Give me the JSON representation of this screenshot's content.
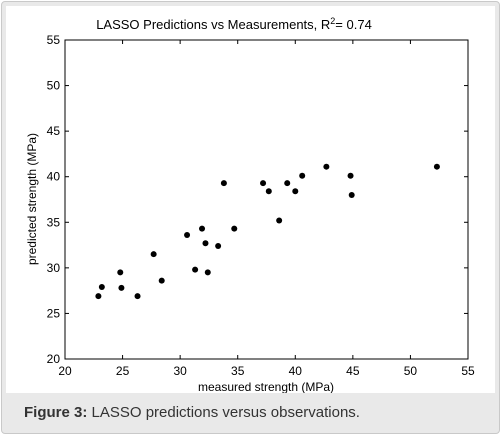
{
  "caption": {
    "label": "Figure 3:",
    "text": " LASSO predictions versus observations."
  },
  "chart_data": {
    "type": "scatter",
    "title_main": "LASSO Predictions vs Measurements, R",
    "title_sup": "2",
    "title_end": "= 0.74",
    "xlabel": "measured strength (MPa)",
    "ylabel": "predicted strength (MPa)",
    "xlim": [
      20,
      55
    ],
    "ylim": [
      20,
      55
    ],
    "xticks": [
      20,
      25,
      30,
      35,
      40,
      45,
      50,
      55
    ],
    "yticks": [
      20,
      25,
      30,
      35,
      40,
      45,
      50,
      55
    ],
    "grid": false,
    "legend": "none",
    "marker_color": "#000000",
    "points": [
      {
        "x": 22.9,
        "y": 26.9
      },
      {
        "x": 23.2,
        "y": 27.9
      },
      {
        "x": 24.8,
        "y": 29.5
      },
      {
        "x": 24.9,
        "y": 27.8
      },
      {
        "x": 26.3,
        "y": 26.9
      },
      {
        "x": 27.7,
        "y": 31.5
      },
      {
        "x": 28.4,
        "y": 28.6
      },
      {
        "x": 30.6,
        "y": 33.6
      },
      {
        "x": 31.3,
        "y": 29.8
      },
      {
        "x": 31.9,
        "y": 34.3
      },
      {
        "x": 32.2,
        "y": 32.7
      },
      {
        "x": 32.4,
        "y": 29.5
      },
      {
        "x": 33.3,
        "y": 32.4
      },
      {
        "x": 33.8,
        "y": 39.3
      },
      {
        "x": 34.7,
        "y": 34.3
      },
      {
        "x": 37.2,
        "y": 39.3
      },
      {
        "x": 37.7,
        "y": 38.4
      },
      {
        "x": 38.6,
        "y": 35.2
      },
      {
        "x": 39.3,
        "y": 39.3
      },
      {
        "x": 40.0,
        "y": 38.4
      },
      {
        "x": 40.6,
        "y": 40.1
      },
      {
        "x": 42.7,
        "y": 41.1
      },
      {
        "x": 44.8,
        "y": 40.1
      },
      {
        "x": 44.9,
        "y": 38.0
      },
      {
        "x": 52.3,
        "y": 41.1
      }
    ]
  }
}
